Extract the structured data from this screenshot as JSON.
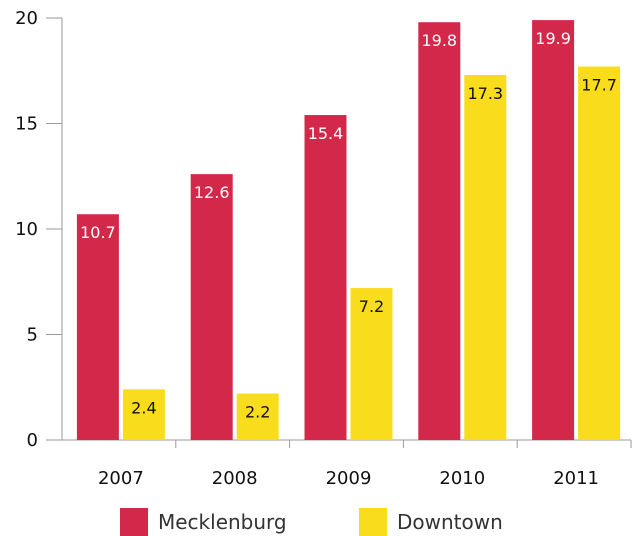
{
  "chart_data": {
    "type": "bar",
    "categories": [
      "2007",
      "2008",
      "2009",
      "2010",
      "2011"
    ],
    "series": [
      {
        "name": "Mecklenburg",
        "values": [
          10.7,
          12.6,
          15.4,
          19.8,
          19.9
        ],
        "color": "#d4284a",
        "label_color": "#ffffff"
      },
      {
        "name": "Downtown",
        "values": [
          2.4,
          2.2,
          7.2,
          17.3,
          17.7
        ],
        "color": "#f9dc1c",
        "label_color": "#111111"
      }
    ],
    "data_labels": [
      [
        "10.7",
        "12.6",
        "15.4",
        "19.8",
        "19.9"
      ],
      [
        "2.4",
        "2.2",
        "7.2",
        "17.3",
        "17.7"
      ]
    ],
    "ylim": [
      0,
      20
    ],
    "yticks": [
      0,
      5,
      10,
      15,
      20
    ],
    "ytick_labels": [
      "0",
      "5",
      "10",
      "15",
      "20"
    ],
    "grid": false,
    "legend_position": "bottom",
    "title": "",
    "xlabel": "",
    "ylabel": ""
  }
}
